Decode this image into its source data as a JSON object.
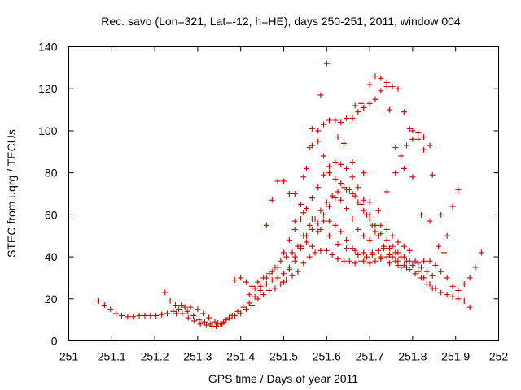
{
  "chart_data": {
    "type": "scatter",
    "title": "Rec. savo (Lon=321, Lat=-12, h=HE), days 250-251, 2011, window 004",
    "xlabel": "GPS time / Days of year 2011",
    "ylabel": "STEC from uqrg / TECUs",
    "xlim": [
      251,
      252
    ],
    "ylim": [
      0,
      140
    ],
    "xticks": [
      251,
      251.1,
      251.2,
      251.3,
      251.4,
      251.5,
      251.6,
      251.7,
      251.8,
      251.9,
      252
    ],
    "yticks": [
      0,
      20,
      40,
      60,
      80,
      100,
      120,
      140
    ],
    "xtick_labels": [
      "251",
      "251.1",
      "251.2",
      "251.3",
      "251.4",
      "251.5",
      "251.6",
      "251.7",
      "251.8",
      "251.9",
      "252"
    ],
    "ytick_labels": [
      "0",
      "20",
      "40",
      "60",
      "80",
      "100",
      "120",
      "140"
    ],
    "grid": false,
    "marker": "plus",
    "color": "#cc0000",
    "series": [
      {
        "name": "",
        "points": [
          [
            251.068,
            19
          ],
          [
            251.083,
            17
          ],
          [
            251.097,
            15
          ],
          [
            251.11,
            13
          ],
          [
            251.123,
            12
          ],
          [
            251.137,
            11.5
          ],
          [
            251.15,
            11.5
          ],
          [
            251.164,
            12
          ],
          [
            251.177,
            12
          ],
          [
            251.19,
            12
          ],
          [
            251.203,
            12
          ],
          [
            251.216,
            12.5
          ],
          [
            251.229,
            13
          ],
          [
            251.243,
            14
          ],
          [
            251.256,
            15
          ],
          [
            251.27,
            16
          ],
          [
            251.283,
            16
          ],
          [
            251.224,
            23
          ],
          [
            251.236,
            19
          ],
          [
            251.248,
            17
          ],
          [
            251.262,
            17
          ],
          [
            251.276,
            14
          ],
          [
            251.29,
            12
          ],
          [
            251.303,
            10
          ],
          [
            251.316,
            9
          ],
          [
            251.329,
            8
          ],
          [
            251.343,
            7
          ],
          [
            251.356,
            8
          ],
          [
            251.25,
            13
          ],
          [
            251.264,
            13
          ],
          [
            251.278,
            11
          ],
          [
            251.292,
            9.5
          ],
          [
            251.306,
            8
          ],
          [
            251.32,
            7.5
          ],
          [
            251.333,
            7
          ],
          [
            251.347,
            8.5
          ],
          [
            251.36,
            9
          ],
          [
            251.373,
            11
          ],
          [
            251.386,
            12
          ],
          [
            251.4,
            13
          ],
          [
            251.413,
            15
          ],
          [
            251.426,
            17
          ],
          [
            251.44,
            20
          ],
          [
            251.453,
            22
          ],
          [
            251.466,
            24
          ],
          [
            251.48,
            25
          ],
          [
            251.493,
            27
          ],
          [
            251.506,
            29
          ],
          [
            251.52,
            31
          ],
          [
            251.533,
            33
          ],
          [
            251.546,
            37
          ],
          [
            251.56,
            40
          ],
          [
            251.573,
            42
          ],
          [
            251.586,
            43
          ],
          [
            251.6,
            43
          ],
          [
            251.613,
            41
          ],
          [
            251.626,
            39
          ],
          [
            251.64,
            38
          ],
          [
            251.653,
            38
          ],
          [
            251.666,
            37
          ],
          [
            251.68,
            38
          ],
          [
            251.693,
            40
          ],
          [
            251.706,
            42
          ],
          [
            251.72,
            43
          ],
          [
            251.733,
            44
          ],
          [
            251.746,
            44
          ],
          [
            251.76,
            42
          ],
          [
            251.773,
            40
          ],
          [
            251.786,
            38
          ],
          [
            251.8,
            36
          ],
          [
            251.813,
            33
          ],
          [
            251.826,
            30
          ],
          [
            251.84,
            27
          ],
          [
            251.853,
            25
          ],
          [
            251.866,
            23
          ],
          [
            251.88,
            22
          ],
          [
            251.893,
            21
          ],
          [
            251.906,
            20
          ],
          [
            251.92,
            19
          ],
          [
            251.933,
            16
          ],
          [
            251.3,
            15
          ],
          [
            251.313,
            13
          ],
          [
            251.326,
            11
          ],
          [
            251.34,
            9
          ],
          [
            251.353,
            8
          ],
          [
            251.366,
            10
          ],
          [
            251.38,
            12
          ],
          [
            251.393,
            14
          ],
          [
            251.406,
            16
          ],
          [
            251.42,
            18
          ],
          [
            251.433,
            21
          ],
          [
            251.446,
            24
          ],
          [
            251.46,
            27
          ],
          [
            251.473,
            29
          ],
          [
            251.486,
            30
          ],
          [
            251.5,
            32
          ],
          [
            251.513,
            35
          ],
          [
            251.526,
            40
          ],
          [
            251.54,
            45
          ],
          [
            251.553,
            50
          ],
          [
            251.566,
            53
          ],
          [
            251.58,
            56
          ],
          [
            251.593,
            57
          ],
          [
            251.606,
            57
          ],
          [
            251.62,
            55
          ],
          [
            251.633,
            52
          ],
          [
            251.646,
            48
          ],
          [
            251.66,
            44
          ],
          [
            251.673,
            41
          ],
          [
            251.686,
            38
          ],
          [
            251.7,
            37
          ],
          [
            251.713,
            38
          ],
          [
            251.726,
            39
          ],
          [
            251.74,
            40
          ],
          [
            251.753,
            40
          ],
          [
            251.766,
            38
          ],
          [
            251.78,
            36
          ],
          [
            251.793,
            34
          ],
          [
            251.806,
            32
          ],
          [
            251.82,
            30
          ],
          [
            251.833,
            27
          ],
          [
            251.846,
            25
          ],
          [
            251.386,
            29
          ],
          [
            251.4,
            30
          ],
          [
            251.413,
            28
          ],
          [
            251.426,
            26
          ],
          [
            251.44,
            28
          ],
          [
            251.453,
            30
          ],
          [
            251.466,
            32
          ],
          [
            251.48,
            35
          ],
          [
            251.493,
            38
          ],
          [
            251.506,
            40
          ],
          [
            251.52,
            42
          ],
          [
            251.533,
            45
          ],
          [
            251.546,
            50
          ],
          [
            251.56,
            55
          ],
          [
            251.573,
            58
          ],
          [
            251.586,
            62
          ],
          [
            251.6,
            66
          ],
          [
            251.613,
            69
          ],
          [
            251.626,
            71
          ],
          [
            251.64,
            73
          ],
          [
            251.653,
            72
          ],
          [
            251.666,
            69
          ],
          [
            251.68,
            65
          ],
          [
            251.693,
            60
          ],
          [
            251.706,
            55
          ],
          [
            251.72,
            50
          ],
          [
            251.733,
            45
          ],
          [
            251.746,
            41
          ],
          [
            251.76,
            38
          ],
          [
            251.773,
            35
          ],
          [
            251.786,
            35
          ],
          [
            251.8,
            36
          ],
          [
            251.813,
            37
          ],
          [
            251.826,
            38
          ],
          [
            251.84,
            38
          ],
          [
            251.853,
            36
          ],
          [
            251.866,
            33
          ],
          [
            251.88,
            30
          ],
          [
            251.893,
            26
          ],
          [
            251.906,
            24
          ],
          [
            251.92,
            27
          ],
          [
            251.933,
            30
          ],
          [
            251.946,
            35
          ],
          [
            251.96,
            42
          ],
          [
            251.42,
            22
          ],
          [
            251.433,
            25
          ],
          [
            251.446,
            26
          ],
          [
            251.46,
            30
          ],
          [
            251.473,
            33
          ],
          [
            251.486,
            35
          ],
          [
            251.5,
            42
          ],
          [
            251.513,
            48
          ],
          [
            251.526,
            53
          ],
          [
            251.54,
            58
          ],
          [
            251.553,
            63
          ],
          [
            251.566,
            68
          ],
          [
            251.58,
            73
          ],
          [
            251.593,
            79
          ],
          [
            251.606,
            83
          ],
          [
            251.62,
            85
          ],
          [
            251.633,
            84
          ],
          [
            251.646,
            82
          ],
          [
            251.66,
            78
          ],
          [
            251.673,
            73
          ],
          [
            251.686,
            67
          ],
          [
            251.7,
            60
          ],
          [
            251.713,
            55
          ],
          [
            251.726,
            51
          ],
          [
            251.74,
            48
          ],
          [
            251.753,
            45
          ],
          [
            251.766,
            42
          ],
          [
            251.78,
            40
          ],
          [
            251.793,
            38
          ],
          [
            251.46,
            55
          ],
          [
            251.473,
            67
          ],
          [
            251.486,
            76
          ],
          [
            251.5,
            76
          ],
          [
            251.513,
            70
          ],
          [
            251.526,
            70
          ],
          [
            251.54,
            65
          ],
          [
            251.553,
            82
          ],
          [
            251.566,
            93
          ],
          [
            251.58,
            95
          ],
          [
            251.593,
            88
          ],
          [
            251.606,
            80
          ],
          [
            251.62,
            77
          ],
          [
            251.633,
            75
          ],
          [
            251.646,
            72
          ],
          [
            251.66,
            70
          ],
          [
            251.673,
            66
          ],
          [
            251.686,
            62
          ],
          [
            251.7,
            58
          ],
          [
            251.566,
            101
          ],
          [
            251.58,
            100
          ],
          [
            251.593,
            103
          ],
          [
            251.606,
            105
          ],
          [
            251.62,
            105
          ],
          [
            251.633,
            104
          ],
          [
            251.646,
            106
          ],
          [
            251.66,
            106
          ],
          [
            251.673,
            109
          ],
          [
            251.686,
            111
          ],
          [
            251.7,
            113
          ],
          [
            251.713,
            115
          ],
          [
            251.726,
            119
          ],
          [
            251.74,
            121
          ],
          [
            251.753,
            121
          ],
          [
            251.766,
            120
          ],
          [
            251.586,
            117
          ],
          [
            251.6,
            132
          ],
          [
            251.666,
            112
          ],
          [
            251.68,
            113
          ],
          [
            251.7,
            122
          ],
          [
            251.713,
            126
          ],
          [
            251.726,
            125
          ],
          [
            251.74,
            123
          ],
          [
            251.746,
            110
          ],
          [
            251.78,
            109
          ],
          [
            251.793,
            101
          ],
          [
            251.8,
            100
          ],
          [
            251.813,
            99
          ],
          [
            251.826,
            97
          ],
          [
            251.84,
            93
          ],
          [
            251.76,
            92
          ],
          [
            251.773,
            88
          ],
          [
            251.786,
            93
          ],
          [
            251.8,
            96
          ],
          [
            251.813,
            96
          ],
          [
            251.826,
            91
          ],
          [
            251.846,
            79
          ],
          [
            251.866,
            60
          ],
          [
            251.88,
            50
          ],
          [
            251.893,
            64
          ],
          [
            251.906,
            72
          ],
          [
            251.546,
            78
          ],
          [
            251.56,
            92
          ],
          [
            251.626,
            97
          ],
          [
            251.64,
            94
          ],
          [
            251.66,
            85
          ],
          [
            251.686,
            80
          ],
          [
            251.7,
            66
          ],
          [
            251.72,
            62
          ],
          [
            251.74,
            71
          ],
          [
            251.76,
            80
          ],
          [
            251.78,
            82
          ],
          [
            251.8,
            78
          ],
          [
            251.82,
            60
          ],
          [
            251.84,
            57
          ],
          [
            251.86,
            45
          ],
          [
            251.873,
            42
          ],
          [
            251.5,
            28
          ],
          [
            251.513,
            34
          ],
          [
            251.526,
            38
          ],
          [
            251.54,
            44
          ],
          [
            251.553,
            47
          ],
          [
            251.566,
            45
          ],
          [
            251.58,
            52
          ],
          [
            251.593,
            60
          ],
          [
            251.606,
            64
          ],
          [
            251.62,
            68
          ],
          [
            251.633,
            67
          ],
          [
            251.646,
            63
          ],
          [
            251.66,
            58
          ],
          [
            251.673,
            53
          ],
          [
            251.686,
            50
          ],
          [
            251.7,
            48
          ],
          [
            251.713,
            52
          ],
          [
            251.726,
            55
          ],
          [
            251.74,
            53
          ],
          [
            251.753,
            50
          ],
          [
            251.766,
            47
          ],
          [
            251.78,
            45
          ],
          [
            251.793,
            43
          ],
          [
            251.806,
            38
          ],
          [
            251.82,
            35
          ],
          [
            251.833,
            33
          ],
          [
            251.846,
            31
          ],
          [
            251.526,
            57
          ],
          [
            251.546,
            61
          ],
          [
            251.566,
            58
          ],
          [
            251.586,
            53
          ],
          [
            251.606,
            50
          ],
          [
            251.626,
            46
          ],
          [
            251.646,
            44
          ],
          [
            251.666,
            43
          ],
          [
            251.686,
            42
          ],
          [
            251.706,
            41
          ],
          [
            251.726,
            40
          ],
          [
            251.746,
            37
          ],
          [
            251.766,
            36
          ]
        ]
      }
    ]
  }
}
